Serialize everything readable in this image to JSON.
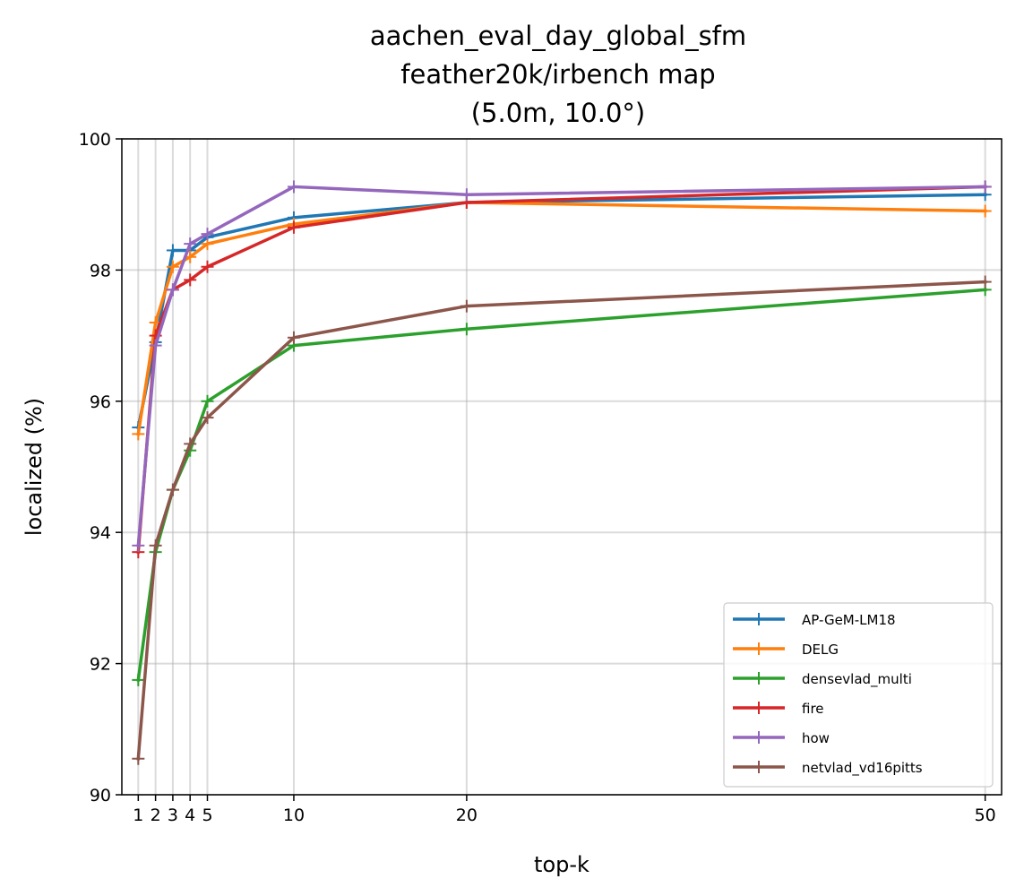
{
  "chart_data": {
    "type": "line",
    "title_lines": [
      "aachen_eval_day_global_sfm",
      "feather20k/irbench map",
      "(5.0m, 10.0°)"
    ],
    "xlabel": "top-k",
    "ylabel": "localized (%)",
    "x": [
      1,
      2,
      3,
      4,
      5,
      10,
      20,
      50
    ],
    "xticks": [
      1,
      2,
      3,
      4,
      5,
      10,
      20,
      50
    ],
    "yticks": [
      90,
      92,
      94,
      96,
      98,
      100
    ],
    "ylim": [
      90,
      100
    ],
    "xlim": [
      0.05,
      50.95
    ],
    "grid": true,
    "legend_position": "lower-right",
    "series": [
      {
        "name": "AP-GeM-LM18",
        "color": "#1f77b4",
        "values": [
          95.6,
          96.9,
          98.3,
          98.3,
          98.5,
          98.8,
          99.03,
          99.15
        ]
      },
      {
        "name": "DELG",
        "color": "#ff7f0e",
        "values": [
          95.5,
          97.2,
          98.05,
          98.2,
          98.4,
          98.7,
          99.03,
          98.9
        ]
      },
      {
        "name": "densevlad_multi",
        "color": "#2ca02c",
        "values": [
          91.75,
          93.7,
          94.65,
          95.25,
          96.0,
          96.85,
          97.1,
          97.7
        ]
      },
      {
        "name": "fire",
        "color": "#d62728",
        "values": [
          93.7,
          97.0,
          97.7,
          97.85,
          98.05,
          98.65,
          99.03,
          99.27
        ]
      },
      {
        "name": "how",
        "color": "#9467bd",
        "values": [
          93.8,
          96.85,
          97.7,
          98.4,
          98.55,
          99.27,
          99.15,
          99.27
        ]
      },
      {
        "name": "netvlad_vd16pitts",
        "color": "#8c564b",
        "values": [
          90.55,
          93.8,
          94.65,
          95.35,
          95.75,
          96.97,
          97.45,
          97.82
        ]
      }
    ]
  }
}
